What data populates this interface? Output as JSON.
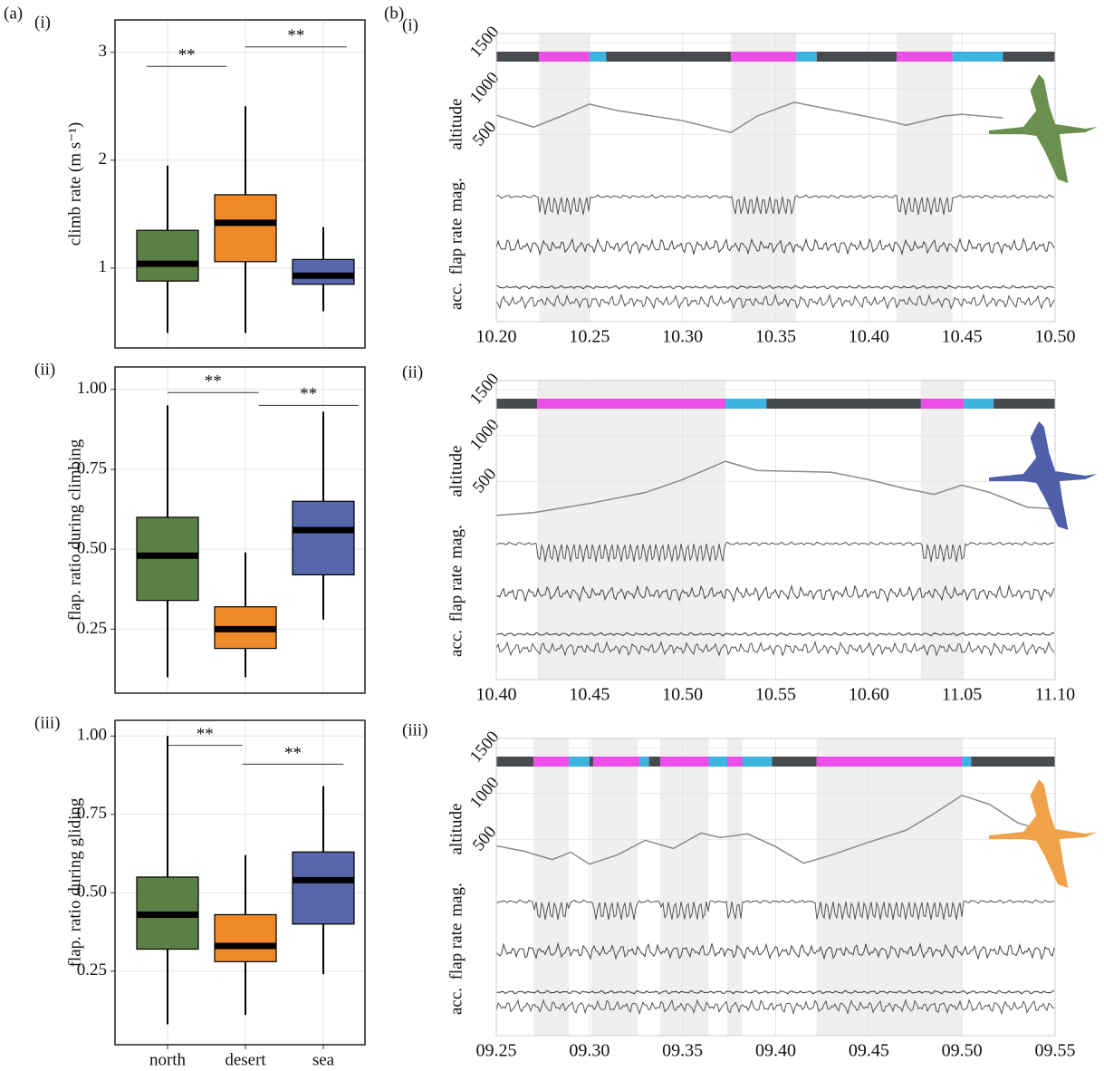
{
  "figure_labels": {
    "a": "(a)",
    "b": "(b)"
  },
  "chart_data": [
    {
      "type": "box",
      "panel": "(i)",
      "ylabel": "climb rate (m s⁻¹)",
      "ylim": [
        0.26,
        3.3
      ],
      "yticks": [
        1,
        2,
        3
      ],
      "colors": [
        "#5b7f45",
        "#ee8a2a",
        "#5566aa"
      ],
      "boxes": [
        {
          "low": 0.4,
          "q1": 0.88,
          "median": 1.04,
          "q3": 1.35,
          "high": 1.95
        },
        {
          "low": 0.4,
          "q1": 1.06,
          "median": 1.42,
          "q3": 1.68,
          "high": 2.5
        },
        {
          "low": 0.6,
          "q1": 0.85,
          "median": 0.93,
          "q3": 1.08,
          "high": 1.38
        }
      ],
      "brackets": [
        {
          "label": "**",
          "y": 2.87,
          "x": [
            -0.27,
            0.76
          ]
        },
        {
          "label": "**",
          "y": 3.05,
          "x": [
            1.0,
            2.3
          ]
        }
      ]
    },
    {
      "type": "box",
      "panel": "(ii)",
      "ylabel": "flap. ratio during climbing",
      "ylim": [
        0.05,
        1.07
      ],
      "yticks": [
        {
          "value": 0.25,
          "label": "0.25"
        },
        {
          "value": 0.5,
          "label": "0.50"
        },
        {
          "value": 0.75,
          "label": "0.75"
        },
        {
          "value": 1,
          "label": "1.00"
        }
      ],
      "colors": [
        "#5b7f45",
        "#ee8a2a",
        "#5566aa"
      ],
      "boxes": [
        {
          "low": 0.1,
          "q1": 0.34,
          "median": 0.48,
          "q3": 0.6,
          "high": 0.95
        },
        {
          "low": 0.1,
          "q1": 0.19,
          "median": 0.25,
          "q3": 0.32,
          "high": 0.49
        },
        {
          "low": 0.28,
          "q1": 0.42,
          "median": 0.56,
          "q3": 0.65,
          "high": 0.93
        }
      ],
      "brackets": [
        {
          "label": "**",
          "y": 0.99,
          "x": [
            0,
            1.17
          ]
        },
        {
          "label": "**",
          "y": 0.95,
          "x": [
            1.17,
            2.45
          ]
        }
      ]
    },
    {
      "type": "box",
      "panel": "(iii)",
      "ylabel": "flap. ratio during gliding",
      "ylim": [
        0.015,
        1.05
      ],
      "yticks": [
        {
          "value": 0.25,
          "label": "0.25"
        },
        {
          "value": 0.5,
          "label": "0.50"
        },
        {
          "value": 0.75,
          "label": "0.75"
        },
        {
          "value": 1,
          "label": "1.00"
        }
      ],
      "categories": [
        "north",
        "desert",
        "sea"
      ],
      "colors": [
        "#5b7f45",
        "#ee8a2a",
        "#5566aa"
      ],
      "boxes": [
        {
          "low": 0.08,
          "q1": 0.32,
          "median": 0.43,
          "q3": 0.55,
          "high": 1.0
        },
        {
          "low": 0.11,
          "q1": 0.28,
          "median": 0.33,
          "q3": 0.43,
          "high": 0.62
        },
        {
          "low": 0.24,
          "q1": 0.4,
          "median": 0.54,
          "q3": 0.63,
          "high": 0.84
        }
      ],
      "brackets": [
        {
          "label": "**",
          "y": 0.97,
          "x": [
            0,
            0.96
          ]
        },
        {
          "label": "**",
          "y": 0.91,
          "x": [
            0.96,
            2.26
          ]
        }
      ]
    },
    {
      "type": "timeseries",
      "panel": "(i)",
      "row_labels": [
        "altitude",
        "mag.",
        "flap rate",
        "acc."
      ],
      "xlim": [
        620,
        650
      ],
      "xticks": [
        {
          "value": 620,
          "label": "10.20"
        },
        {
          "value": 625,
          "label": "10.25"
        },
        {
          "value": 630,
          "label": "10.30"
        },
        {
          "value": 635,
          "label": "10.35"
        },
        {
          "value": 640,
          "label": "10.40"
        },
        {
          "value": 645,
          "label": "10.45"
        },
        {
          "value": 650,
          "label": "10.50"
        }
      ],
      "ylim": [
        0,
        1600
      ],
      "yticks": [
        500,
        1000,
        1500
      ],
      "altitude": {
        "x": [
          620,
          622,
          623.5,
          625,
          626.5,
          630,
          632.6,
          634,
          636,
          638,
          641,
          642,
          644,
          645,
          647.2
        ],
        "values": [
          710,
          580,
          700,
          830,
          760,
          650,
          520,
          700,
          850,
          770,
          650,
          600,
          700,
          720,
          680
        ],
        "color": "#8a8a8a"
      },
      "behaviour": [
        {
          "start": 620,
          "end": 622.3,
          "color": "#474b50"
        },
        {
          "start": 622.3,
          "end": 625,
          "color": "#ea4ee6"
        },
        {
          "start": 625,
          "end": 625.9,
          "color": "#3db3e0"
        },
        {
          "start": 625.9,
          "end": 632.6,
          "color": "#474b50"
        },
        {
          "start": 632.6,
          "end": 636.1,
          "color": "#ea4ee6"
        },
        {
          "start": 636.1,
          "end": 637.2,
          "color": "#3db3e0"
        },
        {
          "start": 637.2,
          "end": 641.5,
          "color": "#474b50"
        },
        {
          "start": 641.5,
          "end": 644.5,
          "color": "#ea4ee6"
        },
        {
          "start": 644.5,
          "end": 647.2,
          "color": "#3db3e0"
        },
        {
          "start": 647.2,
          "end": 650,
          "color": "#474b50"
        }
      ],
      "shaded": [
        {
          "start": 622.3,
          "end": 625
        },
        {
          "start": 632.6,
          "end": 636.1
        },
        {
          "start": 641.5,
          "end": 644.5
        }
      ],
      "bird_color": "#6b8f4e"
    },
    {
      "type": "timeseries",
      "panel": "(ii)",
      "row_labels": [
        "altitude",
        "mag.",
        "flap rate",
        "acc."
      ],
      "xlim": [
        640,
        670
      ],
      "xticks": [
        {
          "value": 640,
          "label": "10.40"
        },
        {
          "value": 645,
          "label": "10.45"
        },
        {
          "value": 650,
          "label": "10.50"
        },
        {
          "value": 655,
          "label": "10.55"
        },
        {
          "value": 660,
          "label": "10.60"
        },
        {
          "value": 665,
          "label": "11.05"
        },
        {
          "value": 670,
          "label": "11.10"
        }
      ],
      "ylim": [
        0,
        1600
      ],
      "yticks": [
        500,
        1000,
        1500
      ],
      "altitude": {
        "x": [
          640,
          642,
          645,
          648,
          650,
          652.3,
          654,
          656,
          658,
          660,
          662,
          663.5,
          665,
          666.5,
          668.5,
          670
        ],
        "values": [
          130,
          160,
          260,
          380,
          520,
          720,
          620,
          610,
          600,
          520,
          420,
          360,
          460,
          380,
          220,
          200
        ],
        "color": "#8a8a8a"
      },
      "behaviour": [
        {
          "start": 640,
          "end": 642.2,
          "color": "#474b50"
        },
        {
          "start": 642.2,
          "end": 652.3,
          "color": "#ea4ee6"
        },
        {
          "start": 652.3,
          "end": 654.5,
          "color": "#3db3e0"
        },
        {
          "start": 654.5,
          "end": 662.8,
          "color": "#474b50"
        },
        {
          "start": 662.8,
          "end": 665.1,
          "color": "#ea4ee6"
        },
        {
          "start": 665.1,
          "end": 666.7,
          "color": "#3db3e0"
        },
        {
          "start": 666.7,
          "end": 670,
          "color": "#474b50"
        }
      ],
      "shaded": [
        {
          "start": 642.2,
          "end": 652.3
        },
        {
          "start": 662.8,
          "end": 665.1
        }
      ],
      "bird_color": "#4f5fa8"
    },
    {
      "type": "timeseries",
      "panel": "(iii)",
      "row_labels": [
        "altitude",
        "mag.",
        "flap rate",
        "acc."
      ],
      "xlim": [
        565,
        595
      ],
      "xticks": [
        {
          "value": 565,
          "label": "09.25"
        },
        {
          "value": 570,
          "label": "09.30"
        },
        {
          "value": 575,
          "label": "09.35"
        },
        {
          "value": 580,
          "label": "09.40"
        },
        {
          "value": 585,
          "label": "09.45"
        },
        {
          "value": 590,
          "label": "09.50"
        },
        {
          "value": 595,
          "label": "09.55"
        }
      ],
      "ylim": [
        0,
        1600
      ],
      "yticks": [
        500,
        1000,
        1500
      ],
      "altitude": {
        "x": [
          565,
          566.5,
          568,
          569,
          570,
          571.5,
          573,
          574.5,
          576,
          577,
          578.5,
          580,
          581.5,
          583,
          585,
          587,
          588.5,
          590,
          591.5,
          593,
          595
        ],
        "values": [
          430,
          370,
          280,
          360,
          230,
          330,
          490,
          400,
          570,
          520,
          560,
          420,
          240,
          330,
          470,
          600,
          780,
          980,
          880,
          680,
          560
        ],
        "color": "#8a8a8a"
      },
      "behaviour": [
        {
          "start": 565,
          "end": 567,
          "color": "#474b50"
        },
        {
          "start": 567,
          "end": 568.9,
          "color": "#ea4ee6"
        },
        {
          "start": 568.9,
          "end": 570,
          "color": "#3db3e0"
        },
        {
          "start": 570,
          "end": 570.2,
          "color": "#474b50"
        },
        {
          "start": 570.2,
          "end": 572.7,
          "color": "#ea4ee6"
        },
        {
          "start": 572.7,
          "end": 573.2,
          "color": "#3db3e0"
        },
        {
          "start": 573.2,
          "end": 573.8,
          "color": "#474b50"
        },
        {
          "start": 573.8,
          "end": 576.4,
          "color": "#ea4ee6"
        },
        {
          "start": 576.4,
          "end": 577.4,
          "color": "#3db3e0"
        },
        {
          "start": 577.4,
          "end": 578.2,
          "color": "#ea4ee6"
        },
        {
          "start": 578.2,
          "end": 579.8,
          "color": "#3db3e0"
        },
        {
          "start": 579.8,
          "end": 582.2,
          "color": "#474b50"
        },
        {
          "start": 582.2,
          "end": 590,
          "color": "#ea4ee6"
        },
        {
          "start": 590,
          "end": 590.5,
          "color": "#3db3e0"
        },
        {
          "start": 590.5,
          "end": 595,
          "color": "#474b50"
        }
      ],
      "shaded": [
        {
          "start": 567,
          "end": 568.9
        },
        {
          "start": 570.1,
          "end": 572.6
        },
        {
          "start": 573.8,
          "end": 576.4
        },
        {
          "start": 577.4,
          "end": 578.2
        },
        {
          "start": 582.2,
          "end": 590
        }
      ],
      "bird_color": "#f0a24a"
    }
  ]
}
